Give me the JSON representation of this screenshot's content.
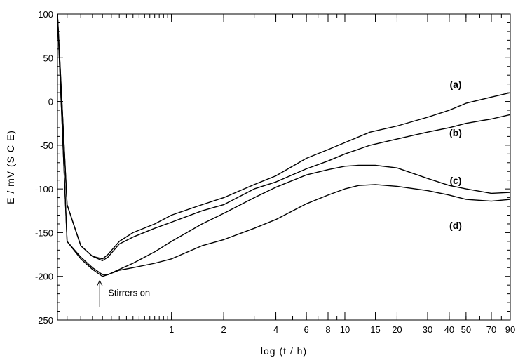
{
  "chart_data": {
    "type": "line",
    "title": "",
    "xlabel": "log  (t / h)",
    "ylabel": "E / mV (S C E)",
    "x_scale": "log",
    "xlim": [
      0.22,
      90
    ],
    "ylim": [
      -250,
      100
    ],
    "x_tick_labels": [
      "1",
      "2",
      "4",
      "6",
      "8",
      "10",
      "15",
      "20",
      "30",
      "40",
      "50",
      "70",
      "90"
    ],
    "y_ticks": [
      -250,
      -200,
      -150,
      -100,
      -50,
      0,
      50,
      100
    ],
    "grid": false,
    "legend": "none",
    "series": [
      {
        "name": "(a)",
        "x": [
          0.22,
          0.25,
          0.3,
          0.35,
          0.4,
          0.43,
          0.5,
          0.6,
          0.8,
          1,
          1.5,
          2,
          3,
          4,
          6,
          8,
          10,
          14,
          20,
          30,
          40,
          50,
          70,
          90
        ],
        "y": [
          100,
          -118,
          -165,
          -177,
          -180,
          -175,
          -160,
          -150,
          -140,
          -130,
          -118,
          -110,
          -95,
          -85,
          -65,
          -55,
          -47,
          -35,
          -28,
          -18,
          -10,
          -2,
          5,
          10
        ]
      },
      {
        "name": "(b)",
        "x": [
          0.22,
          0.25,
          0.3,
          0.35,
          0.4,
          0.43,
          0.5,
          0.6,
          0.8,
          1,
          1.5,
          2,
          3,
          4,
          6,
          8,
          10,
          14,
          20,
          30,
          40,
          50,
          70,
          90
        ],
        "y": [
          100,
          -118,
          -165,
          -177,
          -182,
          -178,
          -163,
          -155,
          -145,
          -138,
          -125,
          -118,
          -100,
          -92,
          -77,
          -68,
          -60,
          -50,
          -43,
          -35,
          -30,
          -25,
          -20,
          -15
        ]
      },
      {
        "name": "(c)",
        "x": [
          0.22,
          0.25,
          0.3,
          0.35,
          0.4,
          0.43,
          0.5,
          0.6,
          0.8,
          1,
          1.5,
          2,
          3,
          4,
          6,
          8,
          10,
          12,
          15,
          20,
          30,
          40,
          50,
          70,
          90
        ],
        "y": [
          100,
          -160,
          -178,
          -190,
          -198,
          -198,
          -192,
          -185,
          -172,
          -160,
          -140,
          -128,
          -110,
          -98,
          -84,
          -78,
          -74,
          -73,
          -73,
          -76,
          -88,
          -96,
          -100,
          -105,
          -104
        ]
      },
      {
        "name": "(d)",
        "x": [
          0.22,
          0.25,
          0.3,
          0.35,
          0.4,
          0.43,
          0.5,
          0.6,
          0.8,
          1,
          1.5,
          2,
          3,
          4,
          6,
          8,
          10,
          12,
          15,
          20,
          30,
          40,
          50,
          70,
          90
        ],
        "y": [
          100,
          -160,
          -180,
          -192,
          -200,
          -198,
          -193,
          -190,
          -185,
          -180,
          -165,
          -158,
          -145,
          -135,
          -117,
          -107,
          -100,
          -96,
          -95,
          -97,
          -102,
          -107,
          -112,
          -114,
          -112
        ]
      }
    ],
    "annotations": [
      {
        "text": "Stirrers on",
        "x": 0.4,
        "y": -200,
        "arrow": "up"
      }
    ]
  }
}
